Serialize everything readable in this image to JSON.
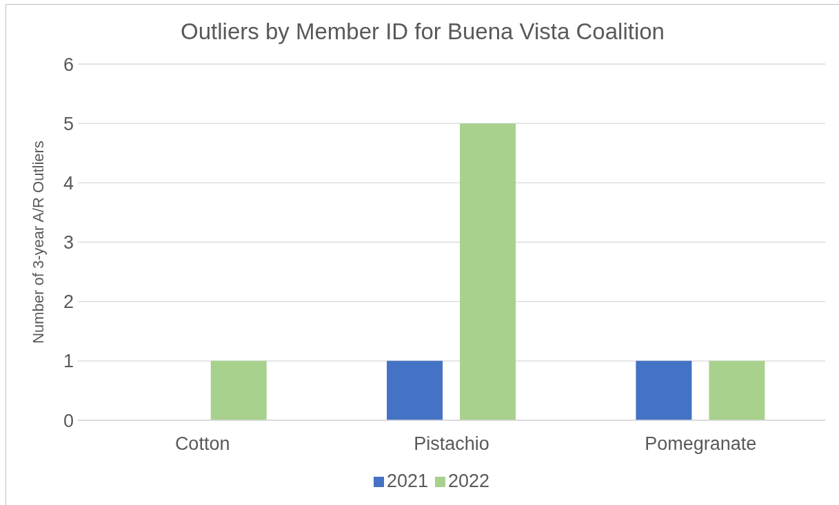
{
  "chart_data": {
    "type": "bar",
    "title": "Outliers by Member ID for Buena Vista Coalition",
    "ylabel": "Number of 3-year A/R Outliers",
    "categories": [
      "Cotton",
      "Pistachio",
      "Pomegranate"
    ],
    "series": [
      {
        "name": "2021",
        "color": "#4472c4",
        "values": [
          0,
          1,
          1
        ]
      },
      {
        "name": "2022",
        "color": "#a9d18e",
        "values": [
          1,
          5,
          1
        ]
      }
    ],
    "ylim": [
      0,
      6
    ],
    "yticks": [
      0,
      1,
      2,
      3,
      4,
      5,
      6
    ],
    "grid": "y",
    "legend": "bottom"
  }
}
